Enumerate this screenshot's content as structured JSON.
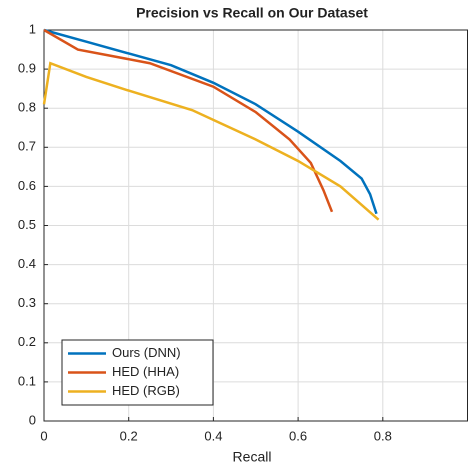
{
  "chart_data": {
    "type": "line",
    "title": "Precision vs Recall on Our Dataset",
    "x_label": "Recall",
    "xlim": [
      0,
      1
    ],
    "ylim": [
      0,
      1
    ],
    "xticks": [
      0,
      0.2,
      0.4,
      0.6,
      0.8
    ],
    "yticks": [
      0,
      0.1,
      0.2,
      0.3,
      0.4,
      0.5,
      0.6,
      0.7,
      0.8,
      0.9,
      1
    ],
    "grid": true,
    "legend": "lower left",
    "series": [
      {
        "name": "Ours (DNN)",
        "color": "#0072bd",
        "x": [
          0,
          0.1,
          0.2,
          0.3,
          0.4,
          0.5,
          0.6,
          0.7,
          0.75,
          0.77,
          0.785
        ],
        "values": [
          1,
          0.97,
          0.94,
          0.91,
          0.865,
          0.81,
          0.74,
          0.665,
          0.62,
          0.58,
          0.53
        ]
      },
      {
        "name": "HED (HHA)",
        "color": "#d95319",
        "x": [
          0,
          0.08,
          0.25,
          0.4,
          0.5,
          0.58,
          0.63,
          0.66,
          0.68
        ],
        "values": [
          1,
          0.95,
          0.915,
          0.855,
          0.79,
          0.72,
          0.66,
          0.59,
          0.535
        ]
      },
      {
        "name": "HED (RGB)",
        "color": "#edb120",
        "x": [
          0,
          0.015,
          0.1,
          0.2,
          0.35,
          0.5,
          0.6,
          0.7,
          0.79
        ],
        "values": [
          0.81,
          0.915,
          0.88,
          0.845,
          0.795,
          0.72,
          0.665,
          0.6,
          0.515
        ]
      }
    ]
  }
}
